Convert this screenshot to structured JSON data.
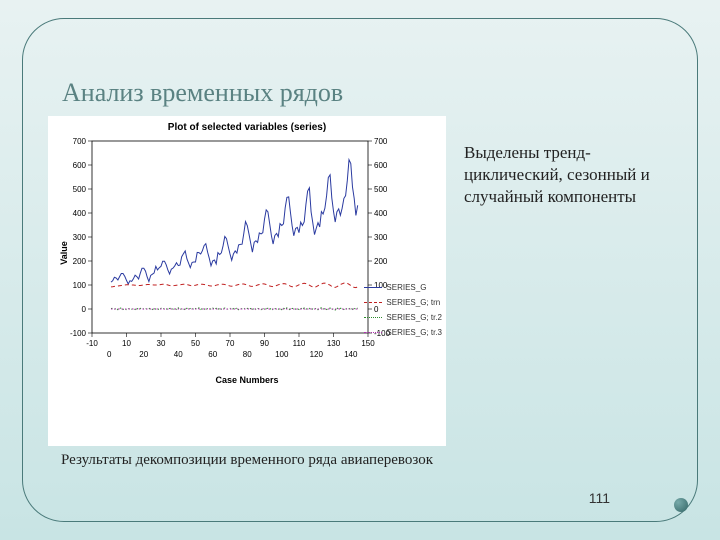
{
  "slide": {
    "heading": "Анализ временных рядов",
    "side_text": "Выделены тренд-циклический, сезонный и случайный компоненты",
    "caption": "Результаты декомпозиции временного ряда авиаперевозок",
    "page_number": "111",
    "background_gradient": [
      "#e8f2f2",
      "#c8e4e4"
    ],
    "frame_color": "#4a7a7a",
    "heading_color": "#5a8282"
  },
  "chart": {
    "type": "line",
    "title": "Plot of selected variables (series)",
    "xlabel": "Case Numbers",
    "ylabel": "Value",
    "title_fontsize": 10,
    "label_fontsize": 9,
    "tick_fontsize": 8,
    "background_color": "#ffffff",
    "plot_bg": "#ffffff",
    "border_color": "#000000",
    "x": {
      "lim": [
        -10,
        150
      ],
      "ticks_top": [
        -10,
        10,
        30,
        50,
        70,
        90,
        110,
        130,
        150
      ],
      "ticks_bottom": [
        0,
        20,
        40,
        60,
        80,
        100,
        120,
        140
      ]
    },
    "y_left": {
      "lim": [
        -100,
        700
      ],
      "ticks": [
        -100,
        0,
        100,
        200,
        300,
        400,
        500,
        600,
        700
      ]
    },
    "y_right": {
      "lim": [
        -100,
        700
      ],
      "ticks": [
        -100,
        0,
        100,
        200,
        300,
        400,
        500,
        600,
        700
      ]
    },
    "legend": {
      "position": "right",
      "items": [
        {
          "label": "SERIES_G",
          "color": "#2a3aa0",
          "dash": "solid"
        },
        {
          "label": "SERIES_G; trn",
          "color": "#c02020",
          "dash": "dash"
        },
        {
          "label": "SERIES_G; tr.2",
          "color": "#2a8a2a",
          "dash": "dot"
        },
        {
          "label": "SERIES_G; tr.3",
          "color": "#b030b0",
          "dash": "dot"
        }
      ]
    },
    "series": [
      {
        "name": "SERIES_G",
        "color": "#2a3aa0",
        "dash": "solid",
        "width": 1,
        "y": [
          112,
          118,
          132,
          129,
          121,
          135,
          148,
          148,
          136,
          119,
          104,
          118,
          115,
          126,
          141,
          135,
          125,
          149,
          170,
          170,
          158,
          133,
          114,
          140,
          145,
          150,
          178,
          163,
          172,
          178,
          199,
          199,
          184,
          162,
          146,
          166,
          171,
          180,
          193,
          181,
          183,
          218,
          230,
          242,
          209,
          191,
          172,
          194,
          196,
          196,
          236,
          235,
          229,
          243,
          264,
          272,
          237,
          211,
          180,
          201,
          204,
          188,
          235,
          227,
          234,
          264,
          302,
          293,
          259,
          229,
          203,
          229,
          242,
          233,
          267,
          269,
          270,
          315,
          364,
          347,
          312,
          274,
          237,
          278,
          284,
          277,
          317,
          313,
          318,
          374,
          413,
          405,
          355,
          306,
          271,
          306,
          315,
          301,
          356,
          348,
          355,
          422,
          465,
          467,
          404,
          347,
          305,
          336,
          340,
          318,
          362,
          348,
          363,
          435,
          491,
          505,
          404,
          359,
          310,
          337,
          360,
          342,
          406,
          396,
          420,
          472,
          548,
          559,
          463,
          407,
          362,
          405,
          417,
          391,
          419,
          461,
          472,
          535,
          622,
          606,
          508,
          461,
          390,
          432
        ]
      },
      {
        "name": "SERIES_G; trn",
        "color": "#c02020",
        "dash": "dash",
        "width": 1,
        "y": [
          92,
          93,
          94,
          95,
          96,
          97,
          98,
          99,
          100,
          101,
          101,
          101,
          100,
          100,
          99,
          99,
          98,
          98,
          99,
          100,
          101,
          102,
          102,
          102,
          101,
          100,
          100,
          100,
          101,
          102,
          103,
          103,
          102,
          100,
          98,
          97,
          97,
          98,
          99,
          100,
          101,
          102,
          103,
          103,
          102,
          100,
          98,
          97,
          98,
          99,
          101,
          102,
          103,
          103,
          102,
          101,
          99,
          97,
          96,
          96,
          97,
          99,
          101,
          102,
          103,
          103,
          102,
          100,
          98,
          96,
          95,
          96,
          98,
          100,
          102,
          103,
          104,
          104,
          102,
          100,
          97,
          95,
          94,
          95,
          97,
          100,
          102,
          104,
          105,
          104,
          102,
          99,
          96,
          94,
          93,
          95,
          98,
          101,
          103,
          105,
          106,
          105,
          102,
          99,
          95,
          93,
          92,
          94,
          97,
          101,
          104,
          106,
          107,
          106,
          103,
          99,
          95,
          92,
          91,
          93,
          97,
          101,
          104,
          107,
          108,
          106,
          103,
          99,
          94,
          91,
          90,
          93,
          97,
          102,
          105,
          108,
          109,
          107,
          103,
          98,
          93,
          90,
          89,
          92
        ]
      },
      {
        "name": "SERIES_G; tr.2",
        "color": "#2a8a2a",
        "dash": "dot",
        "width": 1,
        "y": [
          2,
          3,
          -1,
          4,
          -3,
          2,
          5,
          -2,
          3,
          -4,
          1,
          2,
          -1,
          3,
          -2,
          4,
          -3,
          2,
          5,
          -1,
          3,
          -2,
          1,
          4,
          -2,
          3,
          -1,
          2,
          -4,
          3,
          5,
          -2,
          1,
          -3,
          2,
          4,
          -1,
          3,
          -2,
          5,
          -3,
          2,
          1,
          -4,
          3,
          -1,
          2,
          4,
          -3,
          2,
          -1,
          5,
          -2,
          3,
          1,
          -4,
          2,
          3,
          -1,
          4,
          -2,
          3,
          -3,
          5,
          -1,
          2,
          4,
          -2,
          1,
          3,
          -4,
          2,
          -1,
          5,
          -3,
          2,
          1,
          4,
          -2,
          3,
          -1,
          2,
          -4,
          5,
          -2,
          3,
          1,
          -3,
          4,
          -1,
          2,
          3,
          -2,
          5,
          -4,
          1,
          2,
          -1,
          3,
          -3,
          4,
          -2,
          5,
          1,
          -4,
          2,
          3,
          -1,
          2,
          -2,
          4,
          -3,
          5,
          -1,
          2,
          3,
          -4,
          1,
          -2,
          4,
          -3,
          2,
          5,
          -1,
          3,
          -2,
          1,
          4,
          -3,
          2,
          -4,
          5,
          -1,
          3,
          2,
          -2,
          4,
          -3,
          1,
          5,
          -2,
          3,
          -1,
          4
        ]
      },
      {
        "name": "SERIES_G; tr.3",
        "color": "#b030b0",
        "dash": "dot",
        "width": 1,
        "y": [
          0,
          0,
          0,
          0,
          0,
          0,
          0,
          0,
          0,
          0,
          0,
          0,
          0,
          0,
          0,
          0,
          0,
          0,
          0,
          0,
          0,
          0,
          0,
          0,
          0,
          0,
          0,
          0,
          0,
          0,
          0,
          0,
          0,
          0,
          0,
          0,
          0,
          0,
          0,
          0,
          0,
          0,
          0,
          0,
          0,
          0,
          0,
          0,
          0,
          0,
          0,
          0,
          0,
          0,
          0,
          0,
          0,
          0,
          0,
          0,
          0,
          0,
          0,
          0,
          0,
          0,
          0,
          0,
          0,
          0,
          0,
          0,
          0,
          0,
          0,
          0,
          0,
          0,
          0,
          0,
          0,
          0,
          0,
          0,
          0,
          0,
          0,
          0,
          0,
          0,
          0,
          0,
          0,
          0,
          0,
          0,
          0,
          0,
          0,
          0,
          0,
          0,
          0,
          0,
          0,
          0,
          0,
          0,
          0,
          0,
          0,
          0,
          0,
          0,
          0,
          0,
          0,
          0,
          0,
          0,
          0,
          0,
          0,
          0,
          0,
          0,
          0,
          0,
          0,
          0,
          0,
          0,
          0,
          0,
          0,
          0,
          0,
          0,
          0,
          0,
          0,
          0,
          0,
          0
        ]
      }
    ]
  }
}
